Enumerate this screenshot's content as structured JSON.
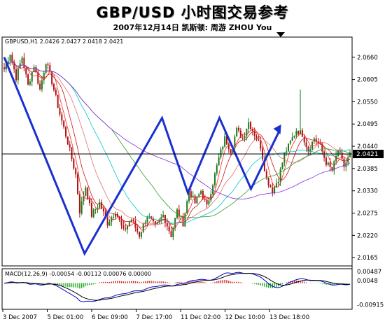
{
  "header": {
    "title": "GBP/USD 小时图交易参考",
    "subtitle": "2007年12月14日   凯斯顿: 周游 ZHOU You"
  },
  "chart_label": "GBPUSD,H1  2.0426 2.0427 2.0418 2.0421",
  "current_price": "2.0421",
  "colors": {
    "bull_candle": "#1a7a1a",
    "bear_candle": "#b01010",
    "overlay": "#1a2fd0",
    "grid_bg": "#ffffff"
  },
  "macd": {
    "label": "MACD(12,26,9) -0.00054 -0.00112 0.00076 0.00000",
    "axis_ticks": [
      "0.00487",
      "0.0048",
      "-0.00915"
    ],
    "range": [
      -0.0105,
      0.0055
    ]
  },
  "chart_data": {
    "type": "candlestick",
    "title": "GBPUSD,H1",
    "y_ticks": [
      "2.0660",
      "2.0605",
      "2.0550",
      "2.0495",
      "2.0440",
      "2.0385",
      "2.0330",
      "2.0275",
      "2.0220",
      "2.0165"
    ],
    "ylim": [
      2.0148,
      2.0708
    ],
    "x_ticks": [
      "3 Dec 2007",
      "5 Dec 01:00",
      "6 Dec 09:00",
      "7 Dec 17:00",
      "11 Dec 02:00",
      "12 Dec 10:00",
      "13 Dec 18:00"
    ],
    "price_path": [
      [
        0,
        2.063
      ],
      [
        3,
        2.067
      ],
      [
        6,
        2.061
      ],
      [
        9,
        2.066
      ],
      [
        12,
        2.059
      ],
      [
        15,
        2.064
      ],
      [
        18,
        2.058
      ],
      [
        21,
        2.065
      ],
      [
        24,
        2.06
      ],
      [
        28,
        2.052
      ],
      [
        32,
        2.045
      ],
      [
        36,
        2.037
      ],
      [
        38,
        2.028
      ],
      [
        41,
        2.034
      ],
      [
        44,
        2.027
      ],
      [
        48,
        2.03
      ],
      [
        52,
        2.025
      ],
      [
        56,
        2.028
      ],
      [
        60,
        2.023
      ],
      [
        64,
        2.026
      ],
      [
        68,
        2.022
      ],
      [
        72,
        2.027
      ],
      [
        76,
        2.024
      ],
      [
        80,
        2.027
      ],
      [
        84,
        2.022
      ],
      [
        87,
        2.028
      ],
      [
        90,
        2.025
      ],
      [
        93,
        2.033
      ],
      [
        96,
        2.03
      ],
      [
        99,
        2.033
      ],
      [
        102,
        2.029
      ],
      [
        105,
        2.035
      ],
      [
        108,
        2.041
      ],
      [
        111,
        2.046
      ],
      [
        114,
        2.043
      ],
      [
        117,
        2.048
      ],
      [
        120,
        2.046
      ],
      [
        123,
        2.05
      ],
      [
        126,
        2.047
      ],
      [
        129,
        2.044
      ],
      [
        132,
        2.036
      ],
      [
        135,
        2.033
      ],
      [
        138,
        2.036
      ],
      [
        141,
        2.042
      ],
      [
        144,
        2.045
      ],
      [
        147,
        2.048
      ],
      [
        150,
        2.047
      ],
      [
        153,
        2.043
      ],
      [
        156,
        2.046
      ],
      [
        159,
        2.044
      ],
      [
        162,
        2.04
      ],
      [
        165,
        2.038
      ],
      [
        168,
        2.043
      ],
      [
        171,
        2.039
      ],
      [
        174,
        2.042
      ]
    ],
    "spike": {
      "index": 149,
      "high": 2.058
    },
    "overlay_polyline": [
      [
        0,
        2.066
      ],
      [
        28,
        2.0175
      ],
      [
        55,
        2.051
      ],
      [
        64,
        2.0325
      ],
      [
        75,
        2.051
      ],
      [
        86,
        2.0335
      ],
      [
        96,
        2.048
      ]
    ]
  }
}
